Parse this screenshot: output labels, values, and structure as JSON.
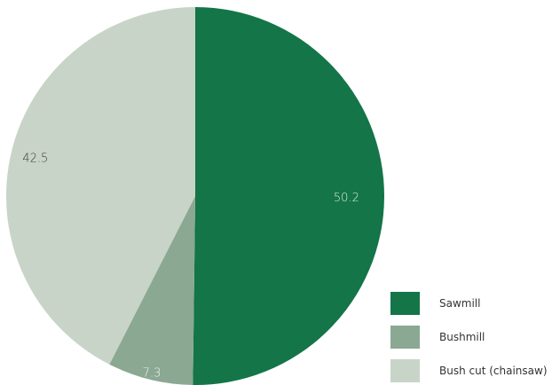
{
  "chart_data": {
    "type": "pie",
    "title": "",
    "slices": [
      {
        "label": "Sawmill",
        "value": 50.2,
        "value_label": "50.2",
        "color": "#137548",
        "label_color": "#dfeee5"
      },
      {
        "label": "Bushmill",
        "value": 7.3,
        "value_label": "7.3",
        "color": "#8aa892",
        "label_color": "#f0f4f1"
      },
      {
        "label": "Bush cut (chainsaw)",
        "value": 42.5,
        "value_label": "42.5",
        "color": "#c8d4c8",
        "label_color": "#333333"
      }
    ],
    "start": "12 o'clock",
    "direction": "clockwise",
    "legend_position": "bottom-right"
  }
}
